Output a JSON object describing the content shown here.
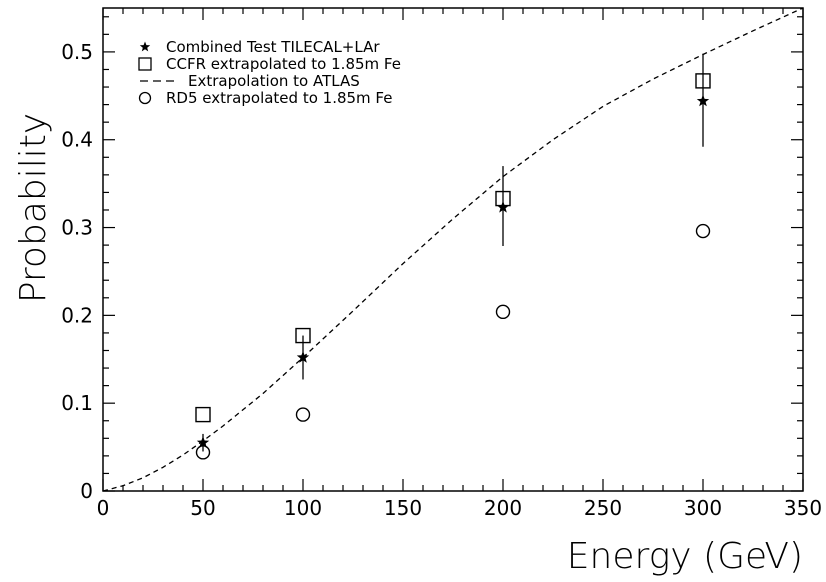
{
  "chart_data": {
    "type": "scatter",
    "title": "",
    "xlabel": "Energy (GeV)",
    "ylabel": "Probability",
    "xlim": [
      0,
      350
    ],
    "ylim": [
      0,
      0.55
    ],
    "x_major_ticks": [
      0,
      50,
      100,
      150,
      200,
      250,
      300,
      350
    ],
    "x_tick_labels": [
      "0",
      "50",
      "100",
      "150",
      "200",
      "250",
      "300",
      "350"
    ],
    "y_major_ticks": [
      0,
      0.1,
      0.2,
      0.3,
      0.4,
      0.5
    ],
    "y_tick_labels": [
      "0",
      "0.1",
      "0.2",
      "0.3",
      "0.4",
      "0.5"
    ],
    "grid": false,
    "legend_position": "top-left",
    "series": [
      {
        "name": "Combined Test TILECAL+LAr",
        "marker": "star",
        "x": [
          50,
          100,
          200,
          300
        ],
        "y": [
          0.055,
          0.152,
          0.323,
          0.444
        ],
        "yerr_low": [
          0.045,
          0.127,
          0.279,
          0.392
        ],
        "yerr_high": [
          0.065,
          0.177,
          0.37,
          0.498
        ]
      },
      {
        "name": "CCFR extrapolated to 1.85m Fe",
        "marker": "open-square",
        "x": [
          50,
          100,
          200,
          300
        ],
        "y": [
          0.087,
          0.177,
          0.333,
          0.467
        ]
      },
      {
        "name": "Extrapolation to ATLAS",
        "marker": "dashed-line",
        "x": [
          0,
          10,
          20,
          30,
          40,
          50,
          60,
          80,
          100,
          125,
          150,
          175,
          200,
          225,
          250,
          275,
          300,
          325,
          350
        ],
        "y": [
          0,
          0.006,
          0.015,
          0.027,
          0.041,
          0.057,
          0.074,
          0.111,
          0.152,
          0.205,
          0.259,
          0.31,
          0.358,
          0.4,
          0.438,
          0.469,
          0.497,
          0.524,
          0.55
        ]
      },
      {
        "name": "RD5 extrapolated to 1.85m Fe",
        "marker": "open-circle",
        "x": [
          50,
          100,
          200,
          300
        ],
        "y": [
          0.044,
          0.087,
          0.204,
          0.296
        ]
      }
    ]
  }
}
